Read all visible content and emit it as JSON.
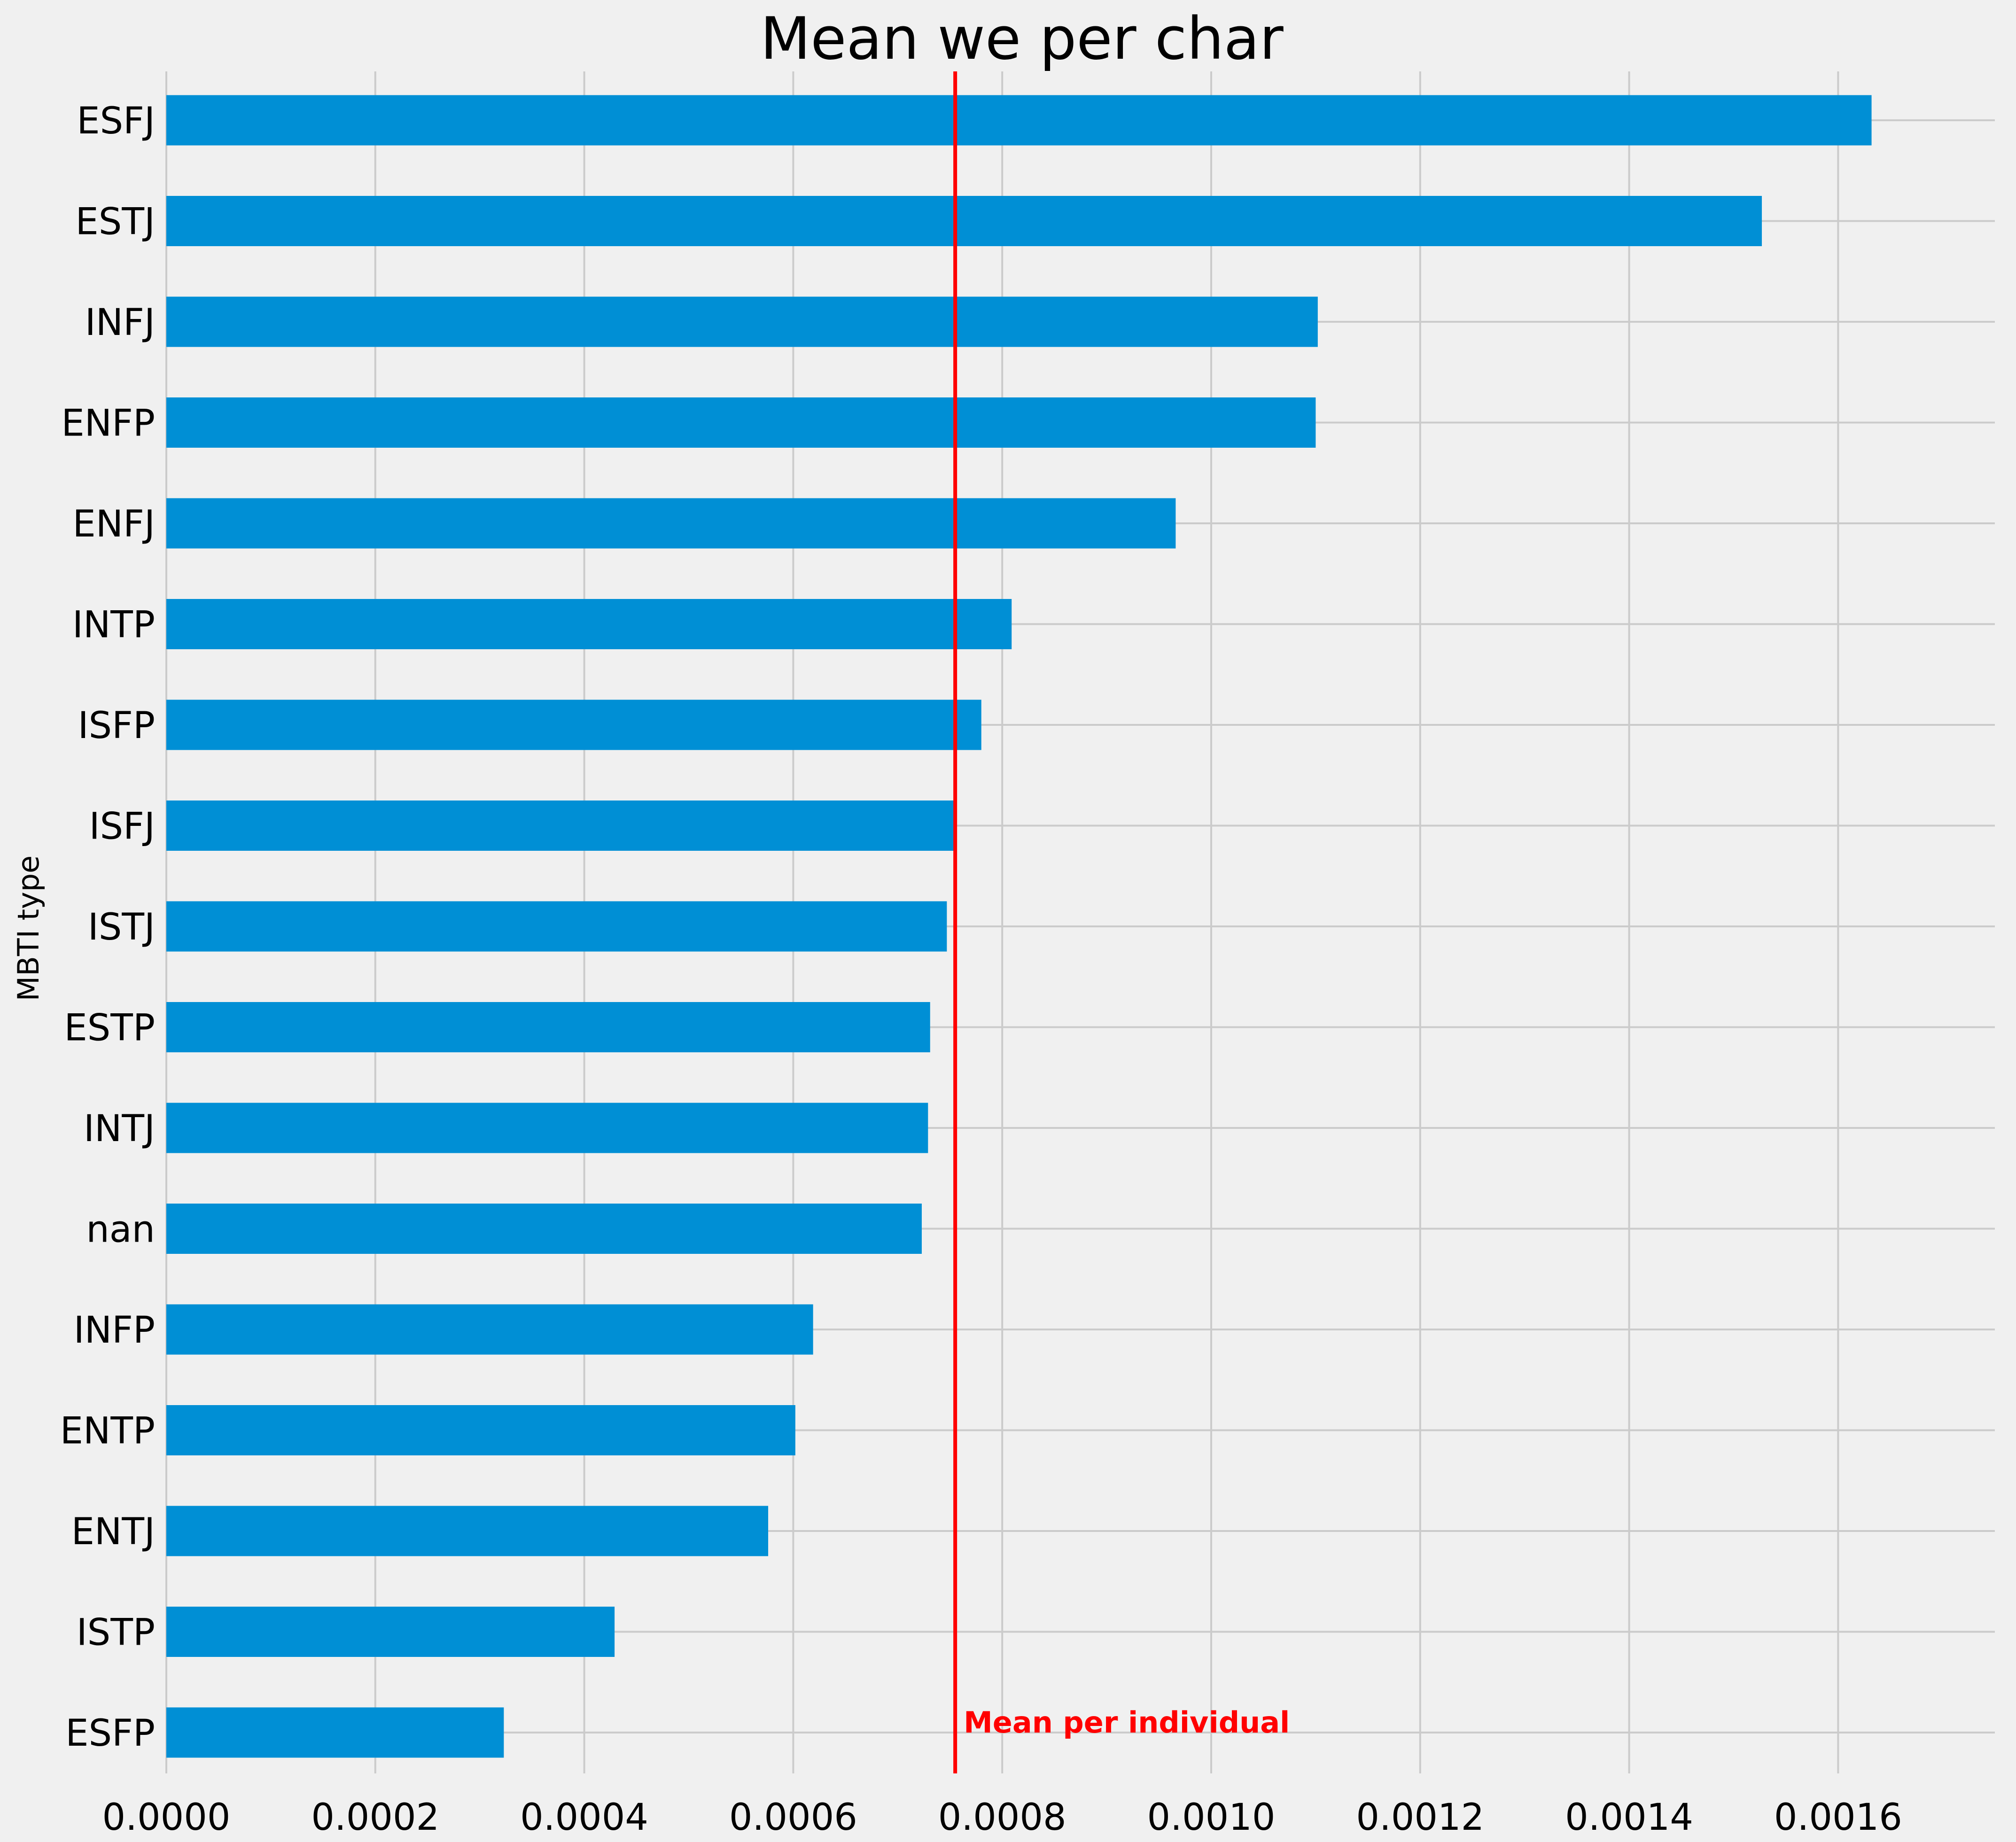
{
  "chart_data": {
    "type": "bar",
    "orientation": "horizontal",
    "title": "Mean we per char",
    "xlabel": "",
    "ylabel": "MBTI type",
    "xlim": [
      0,
      0.00175
    ],
    "xticks": [
      0,
      0.0002,
      0.0004,
      0.0006,
      0.0008,
      0.001,
      0.0012,
      0.0014,
      0.0016
    ],
    "xtick_labels": [
      "0.0000",
      "0.0002",
      "0.0004",
      "0.0006",
      "0.0008",
      "0.0010",
      "0.0012",
      "0.0014",
      "0.0016"
    ],
    "categories": [
      "ESFJ",
      "ESTJ",
      "INFJ",
      "ENFP",
      "ENFJ",
      "INTP",
      "ISFP",
      "ISFJ",
      "ISTJ",
      "ESTP",
      "INTJ",
      "nan",
      "INFP",
      "ENTP",
      "ENTJ",
      "ISTP",
      "ESFP"
    ],
    "values": [
      0.001632,
      0.001527,
      0.001102,
      0.0011,
      0.000966,
      0.000809,
      0.00078,
      0.000755,
      0.000747,
      0.000731,
      0.000729,
      0.000723,
      0.000619,
      0.000602,
      0.000576,
      0.000429,
      0.000323
    ],
    "bar_color": "#008fd5",
    "grid": true,
    "reference_line": {
      "value": 0.000755,
      "color": "#ff0000",
      "label": "Mean per individual"
    }
  },
  "colors": {
    "background": "#f0f0f0",
    "grid": "#cbcbcb"
  }
}
